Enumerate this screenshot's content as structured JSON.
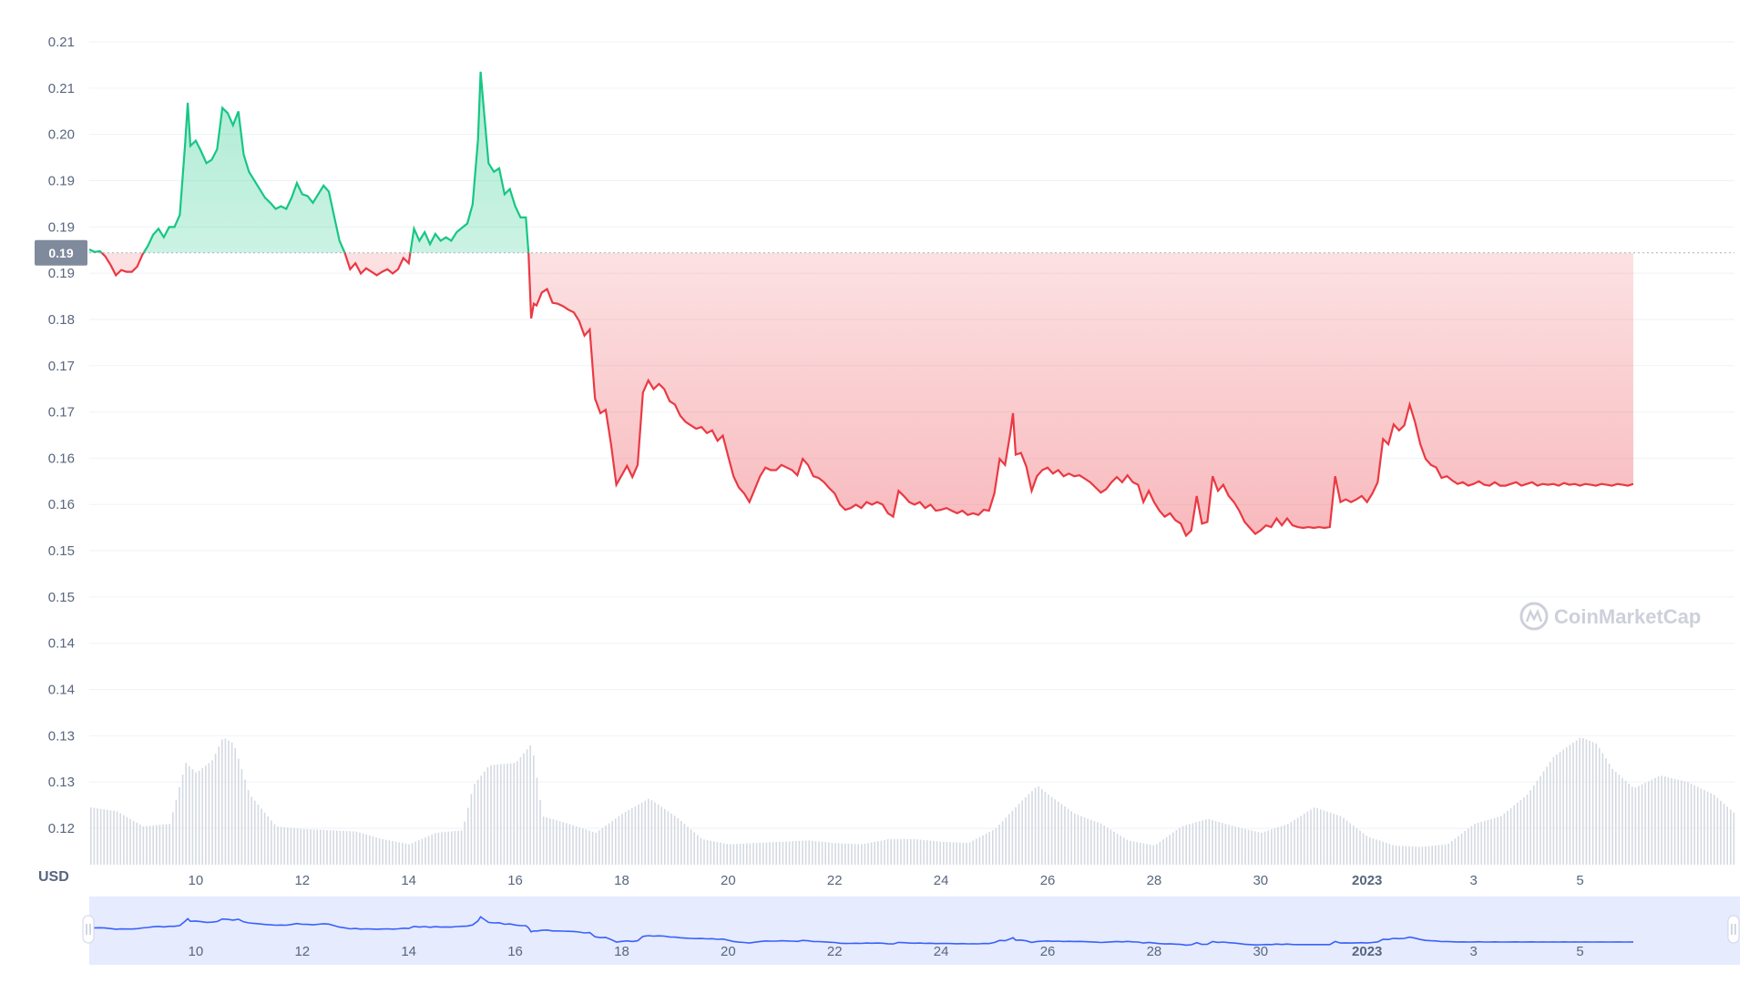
{
  "chart_data": {
    "type": "area",
    "currency_label": "USD",
    "watermark": "CoinMarketCap",
    "reference_value_label": "0.19",
    "y_tick_labels": [
      "0.21",
      "0.21",
      "0.20",
      "0.19",
      "0.19",
      "0.19",
      "0.18",
      "0.17",
      "0.17",
      "0.16",
      "0.16",
      "0.15",
      "0.15",
      "0.14",
      "0.14",
      "0.13",
      "0.13",
      "0.12"
    ],
    "x_tick_labels": [
      {
        "label": "10",
        "day": 9,
        "bold": false
      },
      {
        "label": "12",
        "day": 11,
        "bold": false
      },
      {
        "label": "14",
        "day": 13,
        "bold": false
      },
      {
        "label": "16",
        "day": 15,
        "bold": false
      },
      {
        "label": "18",
        "day": 17,
        "bold": false
      },
      {
        "label": "20",
        "day": 19,
        "bold": false
      },
      {
        "label": "22",
        "day": 21,
        "bold": false
      },
      {
        "label": "24",
        "day": 23,
        "bold": false
      },
      {
        "label": "26",
        "day": 25,
        "bold": false
      },
      {
        "label": "28",
        "day": 27,
        "bold": false
      },
      {
        "label": "30",
        "day": 29,
        "bold": false
      },
      {
        "label": "2023",
        "day": 31,
        "bold": true
      },
      {
        "label": "3",
        "day": 33,
        "bold": false
      },
      {
        "label": "5",
        "day": 35,
        "bold": false
      }
    ],
    "x_range_days": [
      7,
      37.9
    ],
    "y_range": [
      0.1165,
      0.2115
    ],
    "reference_value": 0.1864,
    "colors": {
      "up": "#16c784",
      "down": "#ea3943",
      "navigator_line": "#3861fb",
      "navigator_fill": "#e6ebfe",
      "grid": "#eff2f5",
      "label_bg": "#808a9d",
      "volume": "#d4d9e2"
    },
    "price_series": [
      [
        7.0,
        0.1868
      ],
      [
        7.1,
        0.1865
      ],
      [
        7.2,
        0.1866
      ],
      [
        7.3,
        0.186
      ],
      [
        7.4,
        0.185
      ],
      [
        7.5,
        0.1838
      ],
      [
        7.6,
        0.1844
      ],
      [
        7.7,
        0.1842
      ],
      [
        7.8,
        0.1842
      ],
      [
        7.9,
        0.1848
      ],
      [
        8.0,
        0.1862
      ],
      [
        8.1,
        0.1872
      ],
      [
        8.2,
        0.1885
      ],
      [
        8.3,
        0.1892
      ],
      [
        8.4,
        0.1882
      ],
      [
        8.5,
        0.1894
      ],
      [
        8.6,
        0.1894
      ],
      [
        8.7,
        0.1908
      ],
      [
        8.8,
        0.199
      ],
      [
        8.85,
        0.2038
      ],
      [
        8.9,
        0.1988
      ],
      [
        9.0,
        0.1994
      ],
      [
        9.1,
        0.1982
      ],
      [
        9.2,
        0.1968
      ],
      [
        9.3,
        0.1972
      ],
      [
        9.4,
        0.1984
      ],
      [
        9.5,
        0.2032
      ],
      [
        9.6,
        0.2026
      ],
      [
        9.7,
        0.2012
      ],
      [
        9.8,
        0.2028
      ],
      [
        9.9,
        0.1978
      ],
      [
        10.0,
        0.1958
      ],
      [
        10.1,
        0.1948
      ],
      [
        10.2,
        0.1938
      ],
      [
        10.3,
        0.1928
      ],
      [
        10.4,
        0.1922
      ],
      [
        10.5,
        0.1915
      ],
      [
        10.6,
        0.1918
      ],
      [
        10.7,
        0.1915
      ],
      [
        10.8,
        0.1928
      ],
      [
        10.9,
        0.1945
      ],
      [
        11.0,
        0.1932
      ],
      [
        11.1,
        0.193
      ],
      [
        11.2,
        0.1922
      ],
      [
        11.3,
        0.1932
      ],
      [
        11.4,
        0.1942
      ],
      [
        11.5,
        0.1935
      ],
      [
        11.6,
        0.1906
      ],
      [
        11.7,
        0.1878
      ],
      [
        11.8,
        0.1864
      ],
      [
        11.9,
        0.1845
      ],
      [
        12.0,
        0.1852
      ],
      [
        12.1,
        0.184
      ],
      [
        12.2,
        0.1846
      ],
      [
        12.3,
        0.1842
      ],
      [
        12.4,
        0.1838
      ],
      [
        12.5,
        0.1842
      ],
      [
        12.6,
        0.1845
      ],
      [
        12.7,
        0.184
      ],
      [
        12.8,
        0.1845
      ],
      [
        12.9,
        0.1858
      ],
      [
        13.0,
        0.1852
      ],
      [
        13.1,
        0.1892
      ],
      [
        13.2,
        0.1878
      ],
      [
        13.3,
        0.1888
      ],
      [
        13.4,
        0.1874
      ],
      [
        13.5,
        0.1886
      ],
      [
        13.6,
        0.1878
      ],
      [
        13.7,
        0.1882
      ],
      [
        13.8,
        0.1878
      ],
      [
        13.9,
        0.1888
      ],
      [
        14.0,
        0.1893
      ],
      [
        14.1,
        0.1898
      ],
      [
        14.2,
        0.192
      ],
      [
        14.3,
        0.1995
      ],
      [
        14.35,
        0.2074
      ],
      [
        14.4,
        0.2038
      ],
      [
        14.5,
        0.1968
      ],
      [
        14.6,
        0.1958
      ],
      [
        14.7,
        0.1962
      ],
      [
        14.8,
        0.1932
      ],
      [
        14.9,
        0.1938
      ],
      [
        15.0,
        0.1918
      ],
      [
        15.1,
        0.1905
      ],
      [
        15.2,
        0.1905
      ],
      [
        15.25,
        0.1864
      ],
      [
        15.3,
        0.1788
      ],
      [
        15.35,
        0.1805
      ],
      [
        15.4,
        0.1803
      ],
      [
        15.5,
        0.1818
      ],
      [
        15.6,
        0.1822
      ],
      [
        15.7,
        0.1806
      ],
      [
        15.8,
        0.1805
      ],
      [
        15.9,
        0.1802
      ],
      [
        16.0,
        0.1798
      ],
      [
        16.1,
        0.1795
      ],
      [
        16.2,
        0.1785
      ],
      [
        16.3,
        0.1768
      ],
      [
        16.4,
        0.1775
      ],
      [
        16.5,
        0.1695
      ],
      [
        16.6,
        0.1678
      ],
      [
        16.7,
        0.1682
      ],
      [
        16.8,
        0.1642
      ],
      [
        16.9,
        0.1595
      ],
      [
        17.0,
        0.1606
      ],
      [
        17.1,
        0.1617
      ],
      [
        17.2,
        0.1604
      ],
      [
        17.3,
        0.1618
      ],
      [
        17.4,
        0.1702
      ],
      [
        17.5,
        0.1716
      ],
      [
        17.6,
        0.1706
      ],
      [
        17.7,
        0.1712
      ],
      [
        17.8,
        0.1706
      ],
      [
        17.9,
        0.1692
      ],
      [
        18.0,
        0.1688
      ],
      [
        18.1,
        0.1675
      ],
      [
        18.2,
        0.1668
      ],
      [
        18.3,
        0.1664
      ],
      [
        18.4,
        0.166
      ],
      [
        18.5,
        0.1662
      ],
      [
        18.6,
        0.1655
      ],
      [
        18.7,
        0.1658
      ],
      [
        18.8,
        0.1646
      ],
      [
        18.9,
        0.1652
      ],
      [
        19.0,
        0.1628
      ],
      [
        19.1,
        0.1605
      ],
      [
        19.2,
        0.1592
      ],
      [
        19.3,
        0.1585
      ],
      [
        19.4,
        0.1575
      ],
      [
        19.5,
        0.159
      ],
      [
        19.6,
        0.1605
      ],
      [
        19.7,
        0.1615
      ],
      [
        19.8,
        0.1612
      ],
      [
        19.9,
        0.1612
      ],
      [
        20.0,
        0.1618
      ],
      [
        20.1,
        0.1615
      ],
      [
        20.2,
        0.1612
      ],
      [
        20.3,
        0.1606
      ],
      [
        20.4,
        0.1625
      ],
      [
        20.5,
        0.1618
      ],
      [
        20.6,
        0.1605
      ],
      [
        20.7,
        0.1603
      ],
      [
        20.8,
        0.1598
      ],
      [
        20.9,
        0.1591
      ],
      [
        21.0,
        0.1585
      ],
      [
        21.1,
        0.1572
      ],
      [
        21.2,
        0.1566
      ],
      [
        21.3,
        0.1568
      ],
      [
        21.4,
        0.1572
      ],
      [
        21.5,
        0.1568
      ],
      [
        21.6,
        0.1575
      ],
      [
        21.7,
        0.1572
      ],
      [
        21.8,
        0.1575
      ],
      [
        21.9,
        0.1572
      ],
      [
        22.0,
        0.1562
      ],
      [
        22.1,
        0.1558
      ],
      [
        22.2,
        0.1588
      ],
      [
        22.3,
        0.1582
      ],
      [
        22.4,
        0.1575
      ],
      [
        22.5,
        0.1572
      ],
      [
        22.6,
        0.1575
      ],
      [
        22.7,
        0.1568
      ],
      [
        22.8,
        0.1572
      ],
      [
        22.9,
        0.1565
      ],
      [
        23.0,
        0.1566
      ],
      [
        23.1,
        0.1568
      ],
      [
        23.2,
        0.1565
      ],
      [
        23.3,
        0.1562
      ],
      [
        23.4,
        0.1565
      ],
      [
        23.5,
        0.156
      ],
      [
        23.6,
        0.1562
      ],
      [
        23.7,
        0.156
      ],
      [
        23.8,
        0.1566
      ],
      [
        23.9,
        0.1565
      ],
      [
        24.0,
        0.1585
      ],
      [
        24.1,
        0.1625
      ],
      [
        24.2,
        0.1618
      ],
      [
        24.3,
        0.1655
      ],
      [
        24.35,
        0.1678
      ],
      [
        24.4,
        0.163
      ],
      [
        24.5,
        0.1632
      ],
      [
        24.6,
        0.1616
      ],
      [
        24.7,
        0.1588
      ],
      [
        24.8,
        0.1605
      ],
      [
        24.9,
        0.1612
      ],
      [
        25.0,
        0.1615
      ],
      [
        25.1,
        0.1608
      ],
      [
        25.2,
        0.1612
      ],
      [
        25.3,
        0.1605
      ],
      [
        25.4,
        0.1608
      ],
      [
        25.5,
        0.1605
      ],
      [
        25.6,
        0.1606
      ],
      [
        25.7,
        0.1602
      ],
      [
        25.8,
        0.1598
      ],
      [
        25.9,
        0.1592
      ],
      [
        26.0,
        0.1586
      ],
      [
        26.1,
        0.159
      ],
      [
        26.2,
        0.1598
      ],
      [
        26.3,
        0.1604
      ],
      [
        26.4,
        0.1598
      ],
      [
        26.5,
        0.1606
      ],
      [
        26.6,
        0.1598
      ],
      [
        26.7,
        0.1595
      ],
      [
        26.8,
        0.1575
      ],
      [
        26.9,
        0.1588
      ],
      [
        27.0,
        0.1575
      ],
      [
        27.1,
        0.1565
      ],
      [
        27.2,
        0.1558
      ],
      [
        27.3,
        0.1562
      ],
      [
        27.4,
        0.1554
      ],
      [
        27.5,
        0.155
      ],
      [
        27.6,
        0.1536
      ],
      [
        27.7,
        0.1542
      ],
      [
        27.8,
        0.1582
      ],
      [
        27.9,
        0.155
      ],
      [
        28.0,
        0.1552
      ],
      [
        28.1,
        0.1605
      ],
      [
        28.2,
        0.1588
      ],
      [
        28.3,
        0.1595
      ],
      [
        28.4,
        0.1582
      ],
      [
        28.5,
        0.1575
      ],
      [
        28.6,
        0.1565
      ],
      [
        28.7,
        0.1552
      ],
      [
        28.8,
        0.1545
      ],
      [
        28.9,
        0.1538
      ],
      [
        29.0,
        0.1542
      ],
      [
        29.1,
        0.1548
      ],
      [
        29.2,
        0.1546
      ],
      [
        29.3,
        0.1556
      ],
      [
        29.4,
        0.1548
      ],
      [
        29.5,
        0.1556
      ],
      [
        29.6,
        0.1548
      ],
      [
        29.7,
        0.1546
      ],
      [
        29.8,
        0.1545
      ],
      [
        29.9,
        0.1546
      ],
      [
        30.0,
        0.1545
      ],
      [
        30.1,
        0.1546
      ],
      [
        30.2,
        0.1545
      ],
      [
        30.3,
        0.1546
      ],
      [
        30.4,
        0.1605
      ],
      [
        30.5,
        0.1575
      ],
      [
        30.6,
        0.1578
      ],
      [
        30.7,
        0.1575
      ],
      [
        30.8,
        0.1578
      ],
      [
        30.9,
        0.1582
      ],
      [
        31.0,
        0.1575
      ],
      [
        31.1,
        0.1585
      ],
      [
        31.2,
        0.1598
      ],
      [
        31.3,
        0.1648
      ],
      [
        31.4,
        0.1642
      ],
      [
        31.5,
        0.1665
      ],
      [
        31.6,
        0.1658
      ],
      [
        31.7,
        0.1664
      ],
      [
        31.8,
        0.1688
      ],
      [
        31.9,
        0.1668
      ],
      [
        32.0,
        0.1642
      ],
      [
        32.1,
        0.1625
      ],
      [
        32.2,
        0.1618
      ],
      [
        32.3,
        0.1615
      ],
      [
        32.4,
        0.1603
      ],
      [
        32.5,
        0.1605
      ],
      [
        32.6,
        0.16
      ],
      [
        32.7,
        0.1596
      ],
      [
        32.8,
        0.1598
      ],
      [
        32.9,
        0.1594
      ],
      [
        33.0,
        0.1596
      ],
      [
        33.1,
        0.1599
      ],
      [
        33.2,
        0.1595
      ],
      [
        33.3,
        0.1594
      ],
      [
        33.4,
        0.1598
      ],
      [
        33.5,
        0.1594
      ],
      [
        33.6,
        0.1594
      ],
      [
        33.7,
        0.1596
      ],
      [
        33.8,
        0.1598
      ],
      [
        33.9,
        0.1594
      ],
      [
        34.0,
        0.1596
      ],
      [
        34.1,
        0.1598
      ],
      [
        34.2,
        0.1594
      ],
      [
        34.3,
        0.1596
      ],
      [
        34.4,
        0.1595
      ],
      [
        34.5,
        0.1596
      ],
      [
        34.6,
        0.1594
      ],
      [
        34.7,
        0.1597
      ],
      [
        34.8,
        0.1595
      ],
      [
        34.9,
        0.1596
      ],
      [
        35.0,
        0.1594
      ],
      [
        35.1,
        0.1596
      ],
      [
        35.2,
        0.1595
      ],
      [
        35.3,
        0.1594
      ],
      [
        35.4,
        0.1596
      ],
      [
        35.5,
        0.1595
      ],
      [
        35.6,
        0.1594
      ],
      [
        35.7,
        0.1596
      ],
      [
        35.8,
        0.1595
      ],
      [
        35.9,
        0.1594
      ],
      [
        36.0,
        0.1596
      ]
    ],
    "volume_series": [
      [
        7.0,
        0.45
      ],
      [
        7.5,
        0.42
      ],
      [
        8.0,
        0.3
      ],
      [
        8.5,
        0.32
      ],
      [
        8.8,
        0.8
      ],
      [
        9.0,
        0.72
      ],
      [
        9.3,
        0.82
      ],
      [
        9.5,
        1.0
      ],
      [
        9.7,
        0.95
      ],
      [
        10.0,
        0.55
      ],
      [
        10.5,
        0.3
      ],
      [
        11.0,
        0.28
      ],
      [
        11.5,
        0.27
      ],
      [
        12.0,
        0.26
      ],
      [
        12.5,
        0.2
      ],
      [
        13.0,
        0.16
      ],
      [
        13.5,
        0.25
      ],
      [
        14.0,
        0.27
      ],
      [
        14.2,
        0.62
      ],
      [
        14.5,
        0.78
      ],
      [
        15.0,
        0.8
      ],
      [
        15.3,
        0.95
      ],
      [
        15.5,
        0.38
      ],
      [
        16.0,
        0.32
      ],
      [
        16.5,
        0.25
      ],
      [
        17.0,
        0.4
      ],
      [
        17.5,
        0.52
      ],
      [
        18.0,
        0.38
      ],
      [
        18.5,
        0.2
      ],
      [
        19.0,
        0.16
      ],
      [
        19.5,
        0.17
      ],
      [
        20.0,
        0.18
      ],
      [
        20.5,
        0.19
      ],
      [
        21.0,
        0.17
      ],
      [
        21.5,
        0.16
      ],
      [
        22.0,
        0.2
      ],
      [
        22.5,
        0.2
      ],
      [
        23.0,
        0.18
      ],
      [
        23.5,
        0.17
      ],
      [
        24.0,
        0.28
      ],
      [
        24.5,
        0.5
      ],
      [
        24.8,
        0.62
      ],
      [
        25.0,
        0.55
      ],
      [
        25.5,
        0.4
      ],
      [
        26.0,
        0.32
      ],
      [
        26.5,
        0.19
      ],
      [
        27.0,
        0.15
      ],
      [
        27.5,
        0.3
      ],
      [
        28.0,
        0.36
      ],
      [
        28.5,
        0.3
      ],
      [
        29.0,
        0.25
      ],
      [
        29.5,
        0.32
      ],
      [
        30.0,
        0.45
      ],
      [
        30.5,
        0.38
      ],
      [
        31.0,
        0.22
      ],
      [
        31.5,
        0.15
      ],
      [
        32.0,
        0.14
      ],
      [
        32.5,
        0.16
      ],
      [
        33.0,
        0.32
      ],
      [
        33.5,
        0.38
      ],
      [
        34.0,
        0.55
      ],
      [
        34.5,
        0.85
      ],
      [
        35.0,
        1.0
      ],
      [
        35.3,
        0.95
      ],
      [
        35.6,
        0.75
      ],
      [
        36.0,
        0.6
      ],
      [
        36.5,
        0.7
      ],
      [
        37.0,
        0.65
      ],
      [
        37.5,
        0.55
      ],
      [
        37.9,
        0.4
      ]
    ]
  }
}
